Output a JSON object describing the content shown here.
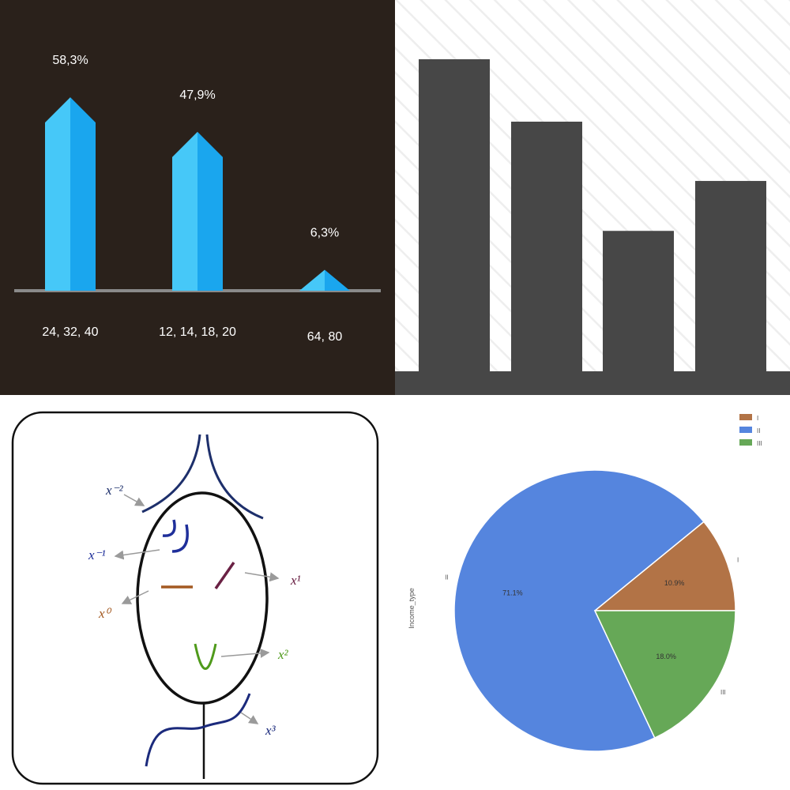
{
  "chart_data": [
    {
      "type": "bar",
      "categories": [
        "24, 32, 40",
        "12, 14, 18, 20",
        "64, 80"
      ],
      "values": [
        58.3,
        47.9,
        6.3
      ],
      "value_labels": [
        "58,3%",
        "47,9%",
        "6,3%"
      ],
      "colors": {
        "bar_light": "#46c8f8",
        "bar_dark": "#1aa6ee",
        "background": "#2a211b",
        "axis": "#8a8a8a",
        "text": "#ffffff"
      },
      "grid": false
    },
    {
      "type": "bar",
      "categories": [
        "",
        "",
        "",
        ""
      ],
      "values": [
        100,
        80,
        45,
        61
      ],
      "colors": {
        "bar": "#474747",
        "stripe": "#eeeeee"
      },
      "grid": false
    },
    {
      "type": "pie",
      "labels": [
        "I",
        "II",
        "III"
      ],
      "values": [
        10.9,
        71.1,
        18.0
      ],
      "slice_labels": [
        "10.9%",
        "71.1%",
        "18.0%"
      ],
      "ylabel": "Income_type",
      "colors": [
        "#b27346",
        "#5585de",
        "#66a857"
      ],
      "legend": {
        "placement": "top-right",
        "entries": [
          "I",
          "II",
          "III"
        ]
      }
    }
  ],
  "diagram": {
    "labels": {
      "x_neg2": "x⁻²",
      "x_neg1": "x⁻¹",
      "x_0": "x⁰",
      "x_1": "x¹",
      "x_2": "x²",
      "x_3": "x³"
    },
    "colors": {
      "x_neg2": "#1d2f6b",
      "x_neg1": "#1f2f9a",
      "x_0": "#a35a22",
      "x_1": "#6a2144",
      "x_2": "#4f9a1b",
      "x_3": "#1b2a7c"
    }
  }
}
